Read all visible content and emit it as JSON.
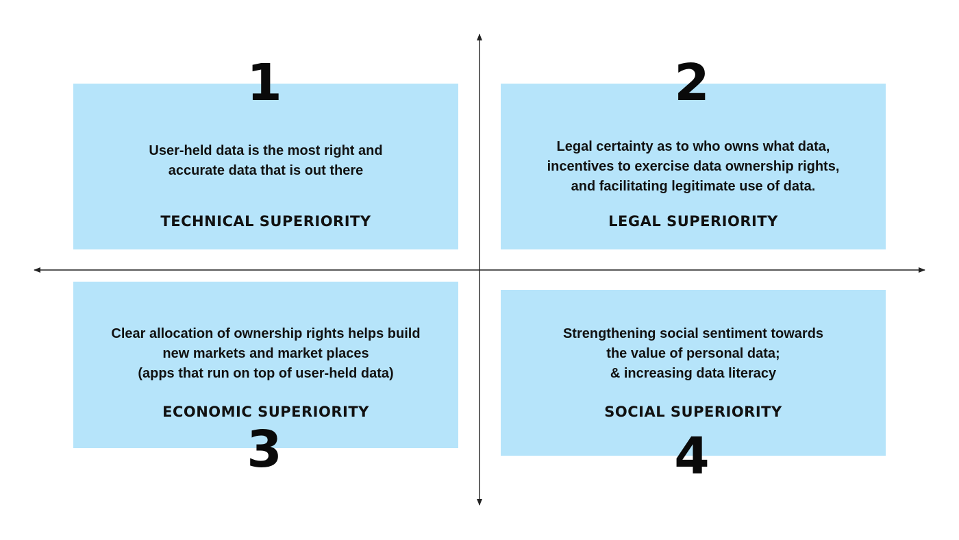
{
  "quadrants": [
    {
      "number": "1",
      "lines": [
        "User-held data is the most right and",
        "accurate data that is out there"
      ],
      "title": "TECHNICAL SUPERIORITY"
    },
    {
      "number": "2",
      "lines": [
        "Legal certainty as to who owns what data,",
        "incentives to exercise data ownership rights,",
        "and facilitating legitimate use of data."
      ],
      "title": "LEGAL SUPERIORITY"
    },
    {
      "number": "3",
      "lines": [
        "Clear allocation of ownership rights helps build",
        "new markets and market places",
        "(apps that run on top of user-held data)"
      ],
      "title": "ECONOMIC SUPERIORITY"
    },
    {
      "number": "4",
      "lines": [
        "Strengthening social sentiment towards",
        "the value of personal data;",
        "& increasing data literacy"
      ],
      "title": "SOCIAL SUPERIORITY"
    }
  ],
  "colors": {
    "box_fill": "#b6e4fa",
    "axis": "#222222"
  }
}
